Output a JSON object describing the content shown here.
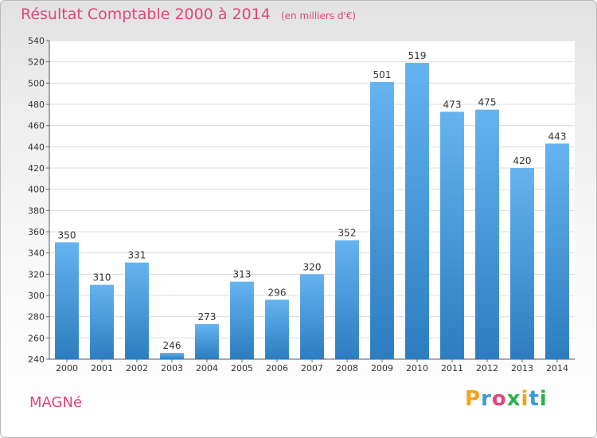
{
  "header": {
    "title": "Résultat Comptable 2000 à 2014",
    "unit": "(en milliers d'€)"
  },
  "footer": {
    "commune": "MAGNé",
    "logo_letters": [
      "P",
      "r",
      "o",
      "x",
      "i",
      "t",
      "i"
    ],
    "logo_colors": [
      "#f2a31b",
      "#3a9bd6",
      "#e2457a",
      "#2bb24c",
      "#f2a31b",
      "#3a9bd6",
      "#2bb24c"
    ]
  },
  "colors": {
    "accent": "#e2457a",
    "bar_top": "#65b3ef",
    "bar_bottom": "#2c7dc0",
    "grid": "#dcdcdc"
  },
  "chart_data": {
    "type": "bar",
    "title": "Résultat Comptable 2000 à 2014",
    "subtitle": "(en milliers d'€)",
    "categories": [
      "2000",
      "2001",
      "2002",
      "2003",
      "2004",
      "2005",
      "2006",
      "2007",
      "2008",
      "2009",
      "2010",
      "2011",
      "2012",
      "2013",
      "2014"
    ],
    "values": [
      350,
      310,
      331,
      246,
      273,
      313,
      296,
      320,
      352,
      501,
      519,
      473,
      475,
      420,
      443
    ],
    "ylim": [
      240,
      540
    ],
    "yticks": [
      240,
      260,
      280,
      300,
      320,
      340,
      360,
      380,
      400,
      420,
      440,
      460,
      480,
      500,
      520,
      540
    ],
    "xlabel": "",
    "ylabel": "",
    "grid": true
  }
}
